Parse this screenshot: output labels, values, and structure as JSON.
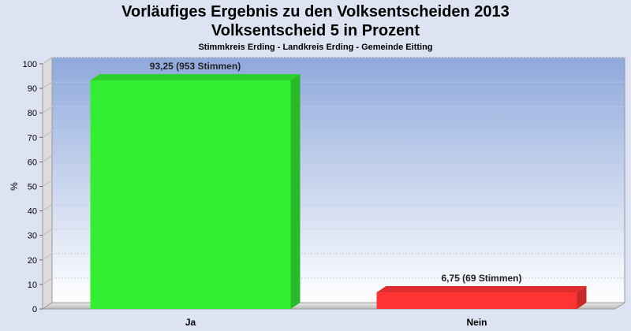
{
  "header": {
    "title_line1": "Vorläufiges Ergebnis zu den Volksentscheiden 2013",
    "title_line2": "Volksentscheid 5 in Prozent",
    "subtitle": "Stimmkreis Erding - Landkreis Erding - Gemeinde Eitting"
  },
  "chart_data": {
    "type": "bar",
    "title": "Vorläufiges Ergebnis zu den Volksentscheiden 2013 Volksentscheid 5 in Prozent",
    "subtitle": "Stimmkreis Erding - Landkreis Erding - Gemeinde Eitting",
    "ylabel": "%",
    "xlabel": "",
    "ylim": [
      0,
      100
    ],
    "yticks": [
      0,
      10,
      20,
      30,
      40,
      50,
      60,
      70,
      80,
      90,
      100
    ],
    "categories": [
      "Ja",
      "Nein"
    ],
    "values": [
      93.25,
      6.75
    ],
    "data_labels": [
      "93,25 (953 Stimmen)",
      "6,75 (69 Stimmen)"
    ],
    "colors": [
      "#33ee33",
      "#ff3333"
    ],
    "grid": true,
    "legend": "none"
  }
}
